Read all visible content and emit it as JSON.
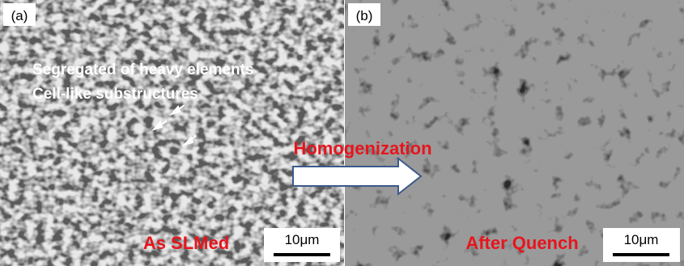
{
  "panels": [
    {
      "label": "(a)",
      "annotations": [
        "Segregated of heavy elements",
        "Cell-like substructures"
      ],
      "caption": "As SLMed",
      "scale_bar": "10μm"
    },
    {
      "label": "(b)",
      "caption": "After Quench",
      "scale_bar": "10μm"
    }
  ],
  "arrow_label": "Homogenization"
}
